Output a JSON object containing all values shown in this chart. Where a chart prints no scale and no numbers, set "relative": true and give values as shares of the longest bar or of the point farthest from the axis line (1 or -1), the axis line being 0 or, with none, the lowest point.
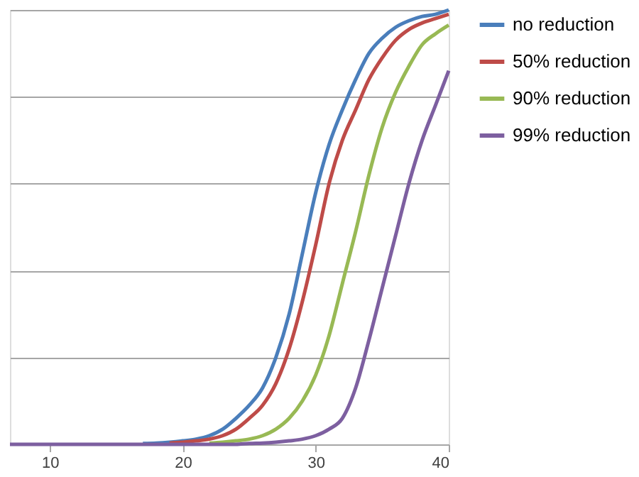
{
  "chart_data": {
    "type": "line",
    "relative": true,
    "grid": "y",
    "legend": "right",
    "xlim": [
      7,
      40
    ],
    "xticks": [
      10,
      20,
      30,
      40
    ],
    "x": [
      7,
      8,
      9,
      10,
      11,
      12,
      13,
      14,
      15,
      16,
      17,
      18,
      19,
      20,
      21,
      22,
      23,
      24,
      25,
      26,
      27,
      28,
      29,
      30,
      31,
      32,
      33,
      34,
      35,
      36,
      37,
      38,
      39,
      40
    ],
    "series": [
      {
        "name": "no reduction",
        "color": "#4a7ebb",
        "x": [
          17,
          18,
          19,
          20,
          21,
          22,
          23,
          24,
          25,
          26,
          27,
          28,
          29,
          30,
          31,
          32,
          33,
          34,
          35,
          36,
          37,
          38,
          39,
          40
        ],
        "values": [
          0.002,
          0.003,
          0.005,
          0.008,
          0.012,
          0.02,
          0.035,
          0.06,
          0.09,
          0.13,
          0.2,
          0.3,
          0.44,
          0.58,
          0.69,
          0.77,
          0.84,
          0.9,
          0.935,
          0.96,
          0.975,
          0.985,
          0.99,
          1.0
        ]
      },
      {
        "name": "50% reduction",
        "color": "#be4b48",
        "x": [
          19,
          20,
          21,
          22,
          23,
          24,
          25,
          26,
          27,
          28,
          29,
          30,
          31,
          32,
          33,
          34,
          35,
          36,
          37,
          38,
          39,
          40
        ],
        "values": [
          0.003,
          0.005,
          0.008,
          0.012,
          0.02,
          0.035,
          0.06,
          0.09,
          0.14,
          0.22,
          0.33,
          0.46,
          0.6,
          0.7,
          0.77,
          0.84,
          0.89,
          0.93,
          0.955,
          0.97,
          0.98,
          0.99
        ]
      },
      {
        "name": "90% reduction",
        "color": "#98b954",
        "x": [
          22,
          23,
          24,
          25,
          26,
          27,
          28,
          29,
          30,
          31,
          32,
          33,
          34,
          35,
          36,
          37,
          38,
          39,
          40
        ],
        "values": [
          0.003,
          0.005,
          0.008,
          0.012,
          0.02,
          0.035,
          0.06,
          0.1,
          0.16,
          0.25,
          0.37,
          0.49,
          0.62,
          0.73,
          0.81,
          0.87,
          0.92,
          0.945,
          0.965
        ]
      },
      {
        "name": "99% reduction",
        "color": "#7d5fa0",
        "values": [
          0,
          0,
          0,
          0,
          0,
          0,
          0,
          0,
          0,
          0,
          0,
          0,
          0,
          0,
          0,
          0,
          0,
          0,
          0.002,
          0.003,
          0.005,
          0.008,
          0.012,
          0.02,
          0.035,
          0.06,
          0.13,
          0.24,
          0.36,
          0.48,
          0.6,
          0.7,
          0.78,
          0.86
        ]
      }
    ]
  }
}
